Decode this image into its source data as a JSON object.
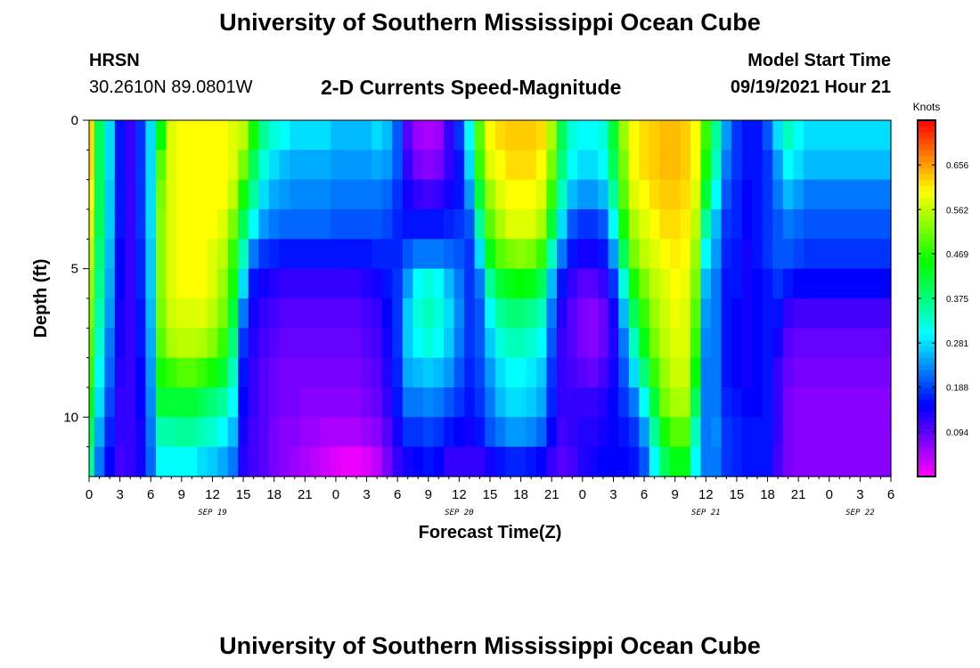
{
  "title": "University of Southern Mississippi Ocean Cube",
  "footer_title": "University of Southern Mississippi Ocean Cube",
  "station": "HRSN",
  "coords": "30.2610N  89.0801W",
  "subtitle": "2-D Currents Speed-Magnitude",
  "model_start_label": "Model Start Time",
  "model_start_value": "09/19/2021 Hour 21",
  "chart_data": {
    "type": "heatmap",
    "title": "2-D Currents Speed-Magnitude",
    "xlabel": "Forecast Time(Z)",
    "ylabel": "Depth (ft)",
    "x_unit": "forecast hour",
    "xlim": [
      0,
      78
    ],
    "ylim": [
      0,
      12
    ],
    "y_inverted": true,
    "x_tick_labels": [
      "0",
      "3",
      "6",
      "9",
      "12",
      "15",
      "18",
      "21",
      "0",
      "3",
      "6",
      "9",
      "12",
      "15",
      "18",
      "21",
      "0",
      "3",
      "6",
      "9",
      "12",
      "15",
      "18",
      "21",
      "0",
      "3",
      "6"
    ],
    "y_ticks": [
      0,
      5,
      10
    ],
    "date_labels": [
      {
        "text": "SEP 19",
        "hour": 12
      },
      {
        "text": "SEP 20",
        "hour": 36
      },
      {
        "text": "SEP 21",
        "hour": 60
      },
      {
        "text": "SEP 22",
        "hour": 75
      }
    ],
    "colorbar": {
      "unit": "Knots",
      "range": [
        0.0,
        0.75
      ],
      "tick_labels": [
        "0.656",
        "0.562",
        "0.469",
        "0.375",
        "0.281",
        "0.188",
        "0.094"
      ]
    },
    "depths_ft": [
      0.5,
      1.5,
      2.5,
      3.5,
      4.5,
      5.5,
      6.5,
      7.5,
      8.5,
      9.5,
      10.5,
      11.5
    ],
    "profiles": [
      {
        "hour": 0,
        "speeds": [
          0.62,
          0.62,
          0.6,
          0.58,
          0.56,
          0.54,
          0.52,
          0.5,
          0.48,
          0.44,
          0.4,
          0.36
        ]
      },
      {
        "hour": 1,
        "speeds": [
          0.4,
          0.4,
          0.4,
          0.4,
          0.38,
          0.37,
          0.35,
          0.33,
          0.3,
          0.28,
          0.25,
          0.22
        ]
      },
      {
        "hour": 2,
        "speeds": [
          0.28,
          0.28,
          0.27,
          0.27,
          0.26,
          0.25,
          0.24,
          0.22,
          0.21,
          0.19,
          0.17,
          0.15
        ]
      },
      {
        "hour": 3,
        "speeds": [
          0.16,
          0.16,
          0.16,
          0.16,
          0.15,
          0.15,
          0.14,
          0.14,
          0.13,
          0.12,
          0.12,
          0.11
        ]
      },
      {
        "hour": 4,
        "speeds": [
          0.12,
          0.12,
          0.12,
          0.12,
          0.12,
          0.12,
          0.12,
          0.12,
          0.12,
          0.12,
          0.12,
          0.12
        ]
      },
      {
        "hour": 5,
        "speeds": [
          0.18,
          0.18,
          0.18,
          0.18,
          0.17,
          0.17,
          0.16,
          0.16,
          0.15,
          0.15,
          0.14,
          0.14
        ]
      },
      {
        "hour": 6,
        "speeds": [
          0.28,
          0.28,
          0.28,
          0.28,
          0.27,
          0.27,
          0.26,
          0.25,
          0.24,
          0.23,
          0.22,
          0.21
        ]
      },
      {
        "hour": 7,
        "speeds": [
          0.45,
          0.5,
          0.52,
          0.53,
          0.53,
          0.53,
          0.52,
          0.5,
          0.46,
          0.42,
          0.35,
          0.3
        ]
      },
      {
        "hour": 8,
        "speeds": [
          0.58,
          0.58,
          0.58,
          0.58,
          0.58,
          0.58,
          0.57,
          0.55,
          0.48,
          0.42,
          0.35,
          0.3
        ]
      },
      {
        "hour": 9,
        "speeds": [
          0.6,
          0.6,
          0.6,
          0.6,
          0.6,
          0.6,
          0.58,
          0.56,
          0.5,
          0.42,
          0.36,
          0.3
        ]
      },
      {
        "hour": 10,
        "speeds": [
          0.6,
          0.6,
          0.6,
          0.6,
          0.6,
          0.6,
          0.58,
          0.56,
          0.5,
          0.42,
          0.36,
          0.3
        ]
      },
      {
        "hour": 11,
        "speeds": [
          0.6,
          0.6,
          0.6,
          0.6,
          0.6,
          0.6,
          0.58,
          0.55,
          0.48,
          0.4,
          0.34,
          0.28
        ]
      },
      {
        "hour": 12,
        "speeds": [
          0.6,
          0.6,
          0.6,
          0.6,
          0.58,
          0.58,
          0.56,
          0.53,
          0.46,
          0.38,
          0.33,
          0.27
        ]
      },
      {
        "hour": 13,
        "speeds": [
          0.6,
          0.6,
          0.6,
          0.58,
          0.56,
          0.54,
          0.52,
          0.48,
          0.42,
          0.36,
          0.3,
          0.25
        ]
      },
      {
        "hour": 14,
        "speeds": [
          0.58,
          0.58,
          0.56,
          0.52,
          0.48,
          0.46,
          0.42,
          0.38,
          0.34,
          0.3,
          0.26,
          0.22
        ]
      },
      {
        "hour": 15,
        "speeds": [
          0.56,
          0.52,
          0.46,
          0.4,
          0.34,
          0.28,
          0.22,
          0.18,
          0.16,
          0.15,
          0.14,
          0.13
        ]
      },
      {
        "hour": 16,
        "speeds": [
          0.46,
          0.4,
          0.36,
          0.3,
          0.22,
          0.16,
          0.14,
          0.13,
          0.12,
          0.12,
          0.11,
          0.11
        ]
      },
      {
        "hour": 17,
        "speeds": [
          0.36,
          0.32,
          0.28,
          0.24,
          0.18,
          0.14,
          0.12,
          0.11,
          0.1,
          0.1,
          0.1,
          0.1
        ]
      },
      {
        "hour": 18,
        "speeds": [
          0.32,
          0.28,
          0.25,
          0.22,
          0.17,
          0.13,
          0.11,
          0.1,
          0.09,
          0.09,
          0.08,
          0.08
        ]
      },
      {
        "hour": 19,
        "speeds": [
          0.3,
          0.26,
          0.24,
          0.21,
          0.16,
          0.12,
          0.1,
          0.09,
          0.08,
          0.08,
          0.07,
          0.07
        ]
      },
      {
        "hour": 20,
        "speeds": [
          0.28,
          0.25,
          0.23,
          0.21,
          0.16,
          0.12,
          0.1,
          0.09,
          0.08,
          0.08,
          0.07,
          0.06
        ]
      },
      {
        "hour": 21,
        "speeds": [
          0.28,
          0.25,
          0.23,
          0.21,
          0.16,
          0.12,
          0.1,
          0.09,
          0.08,
          0.07,
          0.06,
          0.05
        ]
      },
      {
        "hour": 22,
        "speeds": [
          0.28,
          0.25,
          0.23,
          0.21,
          0.16,
          0.12,
          0.1,
          0.09,
          0.08,
          0.07,
          0.06,
          0.04
        ]
      },
      {
        "hour": 23,
        "speeds": [
          0.28,
          0.25,
          0.23,
          0.21,
          0.16,
          0.12,
          0.1,
          0.09,
          0.08,
          0.07,
          0.05,
          0.03
        ]
      },
      {
        "hour": 24,
        "speeds": [
          0.26,
          0.24,
          0.22,
          0.2,
          0.16,
          0.12,
          0.1,
          0.09,
          0.08,
          0.07,
          0.05,
          0.02
        ]
      },
      {
        "hour": 25,
        "speeds": [
          0.26,
          0.24,
          0.22,
          0.2,
          0.16,
          0.12,
          0.1,
          0.09,
          0.08,
          0.07,
          0.05,
          0.01
        ]
      },
      {
        "hour": 26,
        "speeds": [
          0.26,
          0.24,
          0.22,
          0.2,
          0.16,
          0.12,
          0.1,
          0.09,
          0.08,
          0.07,
          0.05,
          0.01
        ]
      },
      {
        "hour": 27,
        "speeds": [
          0.26,
          0.24,
          0.22,
          0.2,
          0.16,
          0.13,
          0.11,
          0.1,
          0.09,
          0.08,
          0.06,
          0.02
        ]
      },
      {
        "hour": 28,
        "speeds": [
          0.28,
          0.25,
          0.22,
          0.2,
          0.17,
          0.14,
          0.12,
          0.11,
          0.1,
          0.09,
          0.07,
          0.04
        ]
      },
      {
        "hour": 29,
        "speeds": [
          0.26,
          0.24,
          0.21,
          0.19,
          0.17,
          0.16,
          0.15,
          0.14,
          0.13,
          0.12,
          0.1,
          0.08
        ]
      },
      {
        "hour": 30,
        "speeds": [
          0.2,
          0.2,
          0.18,
          0.17,
          0.17,
          0.18,
          0.18,
          0.18,
          0.17,
          0.16,
          0.14,
          0.12
        ]
      },
      {
        "hour": 31,
        "speeds": [
          0.1,
          0.12,
          0.14,
          0.16,
          0.2,
          0.24,
          0.27,
          0.27,
          0.25,
          0.22,
          0.18,
          0.14
        ]
      },
      {
        "hour": 32,
        "speeds": [
          0.06,
          0.08,
          0.12,
          0.16,
          0.22,
          0.3,
          0.32,
          0.3,
          0.26,
          0.22,
          0.18,
          0.15
        ]
      },
      {
        "hour": 33,
        "speeds": [
          0.05,
          0.07,
          0.11,
          0.16,
          0.22,
          0.32,
          0.34,
          0.32,
          0.27,
          0.23,
          0.19,
          0.16
        ]
      },
      {
        "hour": 34,
        "speeds": [
          0.06,
          0.08,
          0.12,
          0.16,
          0.22,
          0.3,
          0.32,
          0.3,
          0.26,
          0.22,
          0.18,
          0.15
        ]
      },
      {
        "hour": 35,
        "speeds": [
          0.12,
          0.12,
          0.14,
          0.17,
          0.21,
          0.26,
          0.28,
          0.27,
          0.24,
          0.2,
          0.16,
          0.12
        ]
      },
      {
        "hour": 36,
        "speeds": [
          0.18,
          0.16,
          0.16,
          0.18,
          0.2,
          0.22,
          0.23,
          0.22,
          0.2,
          0.18,
          0.15,
          0.12
        ]
      },
      {
        "hour": 37,
        "speeds": [
          0.3,
          0.28,
          0.24,
          0.2,
          0.18,
          0.18,
          0.18,
          0.18,
          0.17,
          0.16,
          0.14,
          0.12
        ]
      },
      {
        "hour": 38,
        "speeds": [
          0.5,
          0.48,
          0.42,
          0.36,
          0.28,
          0.22,
          0.2,
          0.2,
          0.19,
          0.18,
          0.16,
          0.12
        ]
      },
      {
        "hour": 39,
        "speeds": [
          0.6,
          0.58,
          0.54,
          0.5,
          0.44,
          0.36,
          0.3,
          0.27,
          0.24,
          0.22,
          0.2,
          0.14
        ]
      },
      {
        "hour": 40,
        "speeds": [
          0.62,
          0.6,
          0.58,
          0.55,
          0.5,
          0.42,
          0.36,
          0.32,
          0.28,
          0.26,
          0.22,
          0.16
        ]
      },
      {
        "hour": 41,
        "speeds": [
          0.63,
          0.62,
          0.6,
          0.58,
          0.52,
          0.44,
          0.38,
          0.34,
          0.3,
          0.28,
          0.24,
          0.17
        ]
      },
      {
        "hour": 42,
        "speeds": [
          0.63,
          0.62,
          0.6,
          0.58,
          0.53,
          0.45,
          0.38,
          0.34,
          0.3,
          0.28,
          0.24,
          0.17
        ]
      },
      {
        "hour": 43,
        "speeds": [
          0.63,
          0.62,
          0.6,
          0.58,
          0.52,
          0.44,
          0.37,
          0.33,
          0.29,
          0.27,
          0.23,
          0.16
        ]
      },
      {
        "hour": 44,
        "speeds": [
          0.62,
          0.6,
          0.58,
          0.55,
          0.48,
          0.4,
          0.34,
          0.3,
          0.27,
          0.25,
          0.21,
          0.15
        ]
      },
      {
        "hour": 45,
        "speeds": [
          0.55,
          0.52,
          0.48,
          0.42,
          0.34,
          0.26,
          0.22,
          0.2,
          0.18,
          0.17,
          0.15,
          0.12
        ]
      },
      {
        "hour": 46,
        "speeds": [
          0.4,
          0.38,
          0.34,
          0.28,
          0.22,
          0.16,
          0.13,
          0.12,
          0.12,
          0.12,
          0.11,
          0.1
        ]
      },
      {
        "hour": 47,
        "speeds": [
          0.32,
          0.3,
          0.26,
          0.2,
          0.16,
          0.12,
          0.1,
          0.1,
          0.11,
          0.12,
          0.12,
          0.11
        ]
      },
      {
        "hour": 48,
        "speeds": [
          0.3,
          0.28,
          0.24,
          0.18,
          0.14,
          0.1,
          0.08,
          0.08,
          0.1,
          0.12,
          0.13,
          0.13
        ]
      },
      {
        "hour": 49,
        "speeds": [
          0.3,
          0.28,
          0.24,
          0.18,
          0.14,
          0.1,
          0.07,
          0.07,
          0.09,
          0.12,
          0.13,
          0.14
        ]
      },
      {
        "hour": 50,
        "speeds": [
          0.32,
          0.3,
          0.26,
          0.2,
          0.16,
          0.12,
          0.09,
          0.09,
          0.11,
          0.13,
          0.14,
          0.15
        ]
      },
      {
        "hour": 51,
        "speeds": [
          0.42,
          0.4,
          0.36,
          0.3,
          0.24,
          0.18,
          0.14,
          0.13,
          0.14,
          0.15,
          0.15,
          0.15
        ]
      },
      {
        "hour": 52,
        "speeds": [
          0.54,
          0.52,
          0.5,
          0.46,
          0.4,
          0.32,
          0.26,
          0.22,
          0.2,
          0.18,
          0.16,
          0.15
        ]
      },
      {
        "hour": 53,
        "speeds": [
          0.6,
          0.6,
          0.58,
          0.55,
          0.52,
          0.46,
          0.4,
          0.34,
          0.28,
          0.22,
          0.18,
          0.16
        ]
      },
      {
        "hour": 54,
        "speeds": [
          0.62,
          0.62,
          0.6,
          0.58,
          0.56,
          0.52,
          0.48,
          0.44,
          0.38,
          0.3,
          0.24,
          0.2
        ]
      },
      {
        "hour": 55,
        "speeds": [
          0.63,
          0.63,
          0.62,
          0.6,
          0.58,
          0.56,
          0.54,
          0.52,
          0.48,
          0.42,
          0.36,
          0.3
        ]
      },
      {
        "hour": 56,
        "speeds": [
          0.64,
          0.64,
          0.63,
          0.62,
          0.6,
          0.58,
          0.57,
          0.56,
          0.54,
          0.52,
          0.46,
          0.4
        ]
      },
      {
        "hour": 57,
        "speeds": [
          0.64,
          0.64,
          0.63,
          0.62,
          0.61,
          0.6,
          0.59,
          0.58,
          0.57,
          0.55,
          0.5,
          0.44
        ]
      },
      {
        "hour": 58,
        "speeds": [
          0.63,
          0.63,
          0.62,
          0.61,
          0.6,
          0.59,
          0.58,
          0.58,
          0.57,
          0.55,
          0.5,
          0.44
        ]
      },
      {
        "hour": 59,
        "speeds": [
          0.6,
          0.6,
          0.58,
          0.56,
          0.54,
          0.52,
          0.5,
          0.48,
          0.45,
          0.4,
          0.34,
          0.3
        ]
      },
      {
        "hour": 60,
        "speeds": [
          0.48,
          0.46,
          0.42,
          0.36,
          0.3,
          0.26,
          0.24,
          0.23,
          0.22,
          0.22,
          0.22,
          0.22
        ]
      },
      {
        "hour": 61,
        "speeds": [
          0.36,
          0.34,
          0.3,
          0.26,
          0.24,
          0.22,
          0.22,
          0.22,
          0.22,
          0.22,
          0.23,
          0.22
        ]
      },
      {
        "hour": 62,
        "speeds": [
          0.24,
          0.22,
          0.2,
          0.18,
          0.17,
          0.16,
          0.16,
          0.16,
          0.16,
          0.17,
          0.18,
          0.18
        ]
      },
      {
        "hour": 63,
        "speeds": [
          0.18,
          0.18,
          0.17,
          0.17,
          0.16,
          0.16,
          0.15,
          0.15,
          0.15,
          0.16,
          0.17,
          0.17
        ]
      },
      {
        "hour": 64,
        "speeds": [
          0.16,
          0.16,
          0.15,
          0.15,
          0.14,
          0.14,
          0.14,
          0.14,
          0.14,
          0.15,
          0.16,
          0.16
        ]
      },
      {
        "hour": 65,
        "speeds": [
          0.16,
          0.16,
          0.16,
          0.16,
          0.16,
          0.15,
          0.15,
          0.15,
          0.15,
          0.15,
          0.16,
          0.16
        ]
      },
      {
        "hour": 66,
        "speeds": [
          0.2,
          0.18,
          0.18,
          0.18,
          0.18,
          0.16,
          0.16,
          0.16,
          0.16,
          0.16,
          0.16,
          0.16
        ]
      },
      {
        "hour": 67,
        "speeds": [
          0.28,
          0.24,
          0.22,
          0.2,
          0.2,
          0.18,
          0.16,
          0.14,
          0.12,
          0.12,
          0.12,
          0.11
        ]
      },
      {
        "hour": 68,
        "speeds": [
          0.34,
          0.3,
          0.26,
          0.22,
          0.2,
          0.16,
          0.12,
          0.1,
          0.09,
          0.08,
          0.08,
          0.08
        ]
      },
      {
        "hour": 69,
        "speeds": [
          0.3,
          0.28,
          0.24,
          0.21,
          0.19,
          0.15,
          0.11,
          0.09,
          0.08,
          0.07,
          0.07,
          0.07
        ]
      },
      {
        "hour": 70,
        "speeds": [
          0.28,
          0.26,
          0.22,
          0.2,
          0.18,
          0.15,
          0.11,
          0.09,
          0.08,
          0.07,
          0.07,
          0.07
        ]
      }
    ]
  }
}
